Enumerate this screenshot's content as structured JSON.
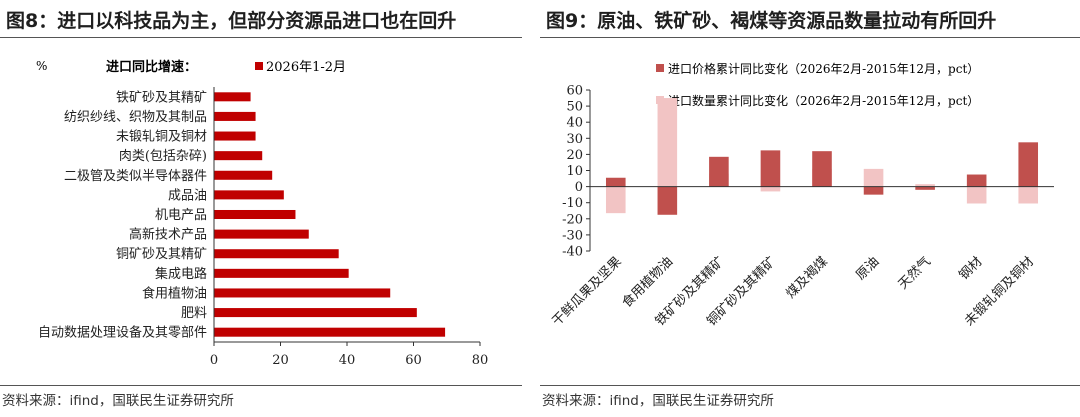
{
  "left": {
    "title": "图8：进口以科技品为主，但部分资源品进口也在回升",
    "source": "资料来源：ifind，国联民生证券研究所",
    "unit_label": "%",
    "measure_label": "进口同比增速：",
    "chart_data": {
      "type": "bar",
      "orientation": "horizontal",
      "categories": [
        "铁矿砂及其精矿",
        "纺织纱线、织物及其制品",
        "未锻轧铜及铜材",
        "肉类(包括杂碎)",
        "二极管及类似半导体器件",
        "成品油",
        "机电产品",
        "高新技术产品",
        "铜矿砂及其精矿",
        "集成电路",
        "食用植物油",
        "肥料",
        "自动数据处理设备及其零部件"
      ],
      "series": [
        {
          "name": "2026年1-2月",
          "color": "#c00000",
          "values": [
            11,
            12.5,
            12.5,
            14.5,
            17.5,
            21,
            24.5,
            28.5,
            37.5,
            40.5,
            53,
            61,
            69.5
          ]
        }
      ],
      "xlim": [
        0,
        80
      ],
      "xticks": [
        0,
        20,
        40,
        60,
        80
      ]
    }
  },
  "right": {
    "title": "图9：原油、铁矿砂、褐煤等资源品数量拉动有所回升",
    "source": "资料来源：ifind，国联民生证券研究所",
    "chart_data": {
      "type": "bar",
      "stacking": "overlay",
      "categories": [
        "干鲜瓜果及坚果",
        "食用植物油",
        "铁矿砂及其精矿",
        "铜矿砂及其精矿",
        "煤及褐煤",
        "原油",
        "天然气",
        "钢材",
        "未锻轧铜及铜材"
      ],
      "series": [
        {
          "name": "进口价格累计同比变化（2026年2月-2015年12月，pct）",
          "color": "#c0504d",
          "values": [
            5.5,
            -17.5,
            18.5,
            22.5,
            22,
            -5,
            -2,
            7.5,
            27.5
          ]
        },
        {
          "name": "进口数量累计同比变化（2026年2月-2015年12月，pct）",
          "color": "#f2c4c4",
          "values": [
            -16.5,
            55,
            8,
            -3,
            11,
            11,
            1.5,
            -10.5,
            -10.5
          ]
        }
      ],
      "ylim": [
        -40,
        60
      ],
      "yticks": [
        60,
        50,
        40,
        30,
        20,
        10,
        0,
        -10,
        -20,
        -30,
        -40
      ]
    }
  }
}
